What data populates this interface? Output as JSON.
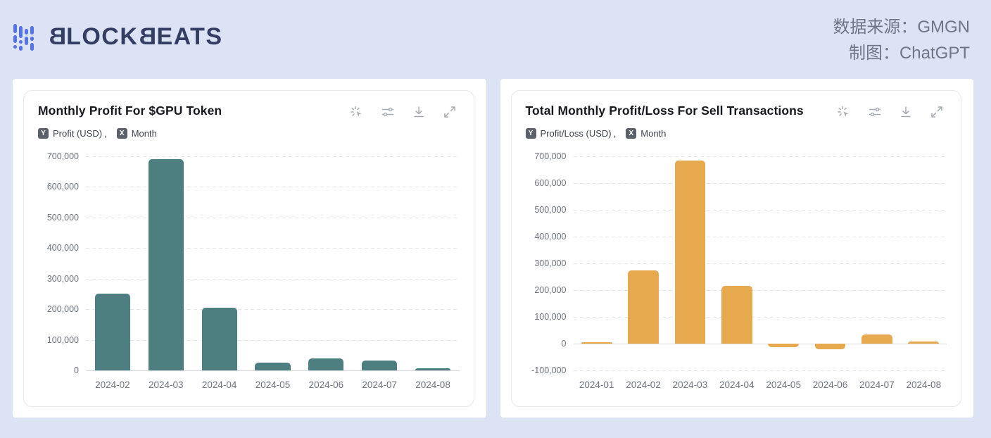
{
  "header": {
    "logo": {
      "b1": "B",
      "mid": "LOCK",
      "b2": "B",
      "end": "EATS"
    },
    "source_line1": "数据来源：GMGN",
    "source_line2": "制图：ChatGPT"
  },
  "legend": {
    "y_badge": "Y",
    "x_badge": "X",
    "separator": ","
  },
  "toolbar_icons": [
    "sparkle-cursor",
    "sliders",
    "download",
    "expand"
  ],
  "colors": {
    "page_background": "#dbe3f4",
    "card_background": "#ffffff",
    "teal_bar": "#4e7f80",
    "orange_bar": "#e6a94e",
    "logo_navy": "#343e63",
    "logo_blue": "#5673e8",
    "axis_text": "#6e7380"
  },
  "chart_data": [
    {
      "type": "bar",
      "title": "Monthly Profit For $GPU Token",
      "y_series_label": "Profit (USD)",
      "x_series_label": "Month",
      "categories": [
        "2024-02",
        "2024-03",
        "2024-04",
        "2024-05",
        "2024-06",
        "2024-07",
        "2024-08"
      ],
      "values": [
        252000,
        690000,
        205000,
        25000,
        40000,
        32000,
        8000
      ],
      "ylim": [
        0,
        700000
      ],
      "ytick_step": 100000,
      "bar_color": "#4e7f80",
      "grid": "dashed horizontal",
      "legend_position": "top-left badges"
    },
    {
      "type": "bar",
      "title": "Total Monthly Profit/Loss For Sell Transactions",
      "y_series_label": "Profit/Loss (USD)",
      "x_series_label": "Month",
      "categories": [
        "2024-01",
        "2024-02",
        "2024-03",
        "2024-04",
        "2024-05",
        "2024-06",
        "2024-07",
        "2024-08"
      ],
      "values": [
        2000,
        275000,
        685000,
        215000,
        -12000,
        -20000,
        35000,
        8000
      ],
      "ylim": [
        -100000,
        700000
      ],
      "ytick_step": 100000,
      "bar_color": "#e6a94e",
      "grid": "dashed horizontal",
      "legend_position": "top-left badges"
    }
  ]
}
